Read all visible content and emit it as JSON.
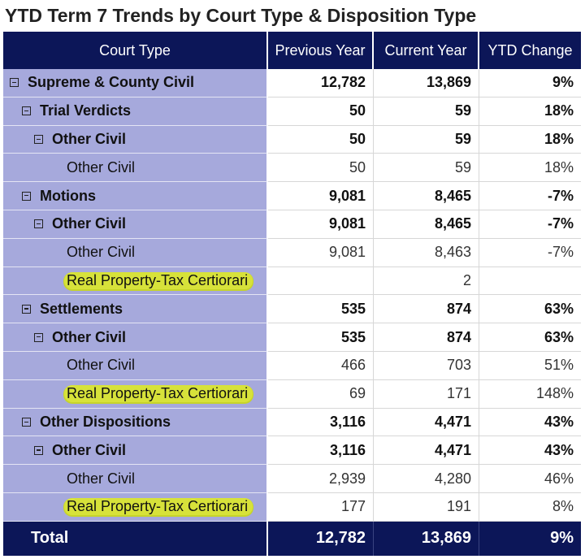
{
  "title": "YTD Term 7 Trends by Court Type & Disposition Type",
  "chart_data": {
    "type": "table",
    "columns": [
      "Court Type",
      "Previous Year",
      "Current Year",
      "YTD Change"
    ],
    "rows": [
      {
        "label": "Supreme & County Civil",
        "level": 0,
        "expandable": true,
        "bold": true,
        "highlight": false,
        "previous_year": "12,782",
        "current_year": "13,869",
        "ytd_change": "9%"
      },
      {
        "label": "Trial Verdicts",
        "level": 1,
        "expandable": true,
        "bold": true,
        "highlight": false,
        "previous_year": "50",
        "current_year": "59",
        "ytd_change": "18%"
      },
      {
        "label": "Other Civil",
        "level": 2,
        "expandable": true,
        "bold": true,
        "highlight": false,
        "previous_year": "50",
        "current_year": "59",
        "ytd_change": "18%"
      },
      {
        "label": "Other Civil",
        "level": 3,
        "expandable": false,
        "bold": false,
        "highlight": false,
        "previous_year": "50",
        "current_year": "59",
        "ytd_change": "18%"
      },
      {
        "label": "Motions",
        "level": 1,
        "expandable": true,
        "bold": true,
        "highlight": false,
        "previous_year": "9,081",
        "current_year": "8,465",
        "ytd_change": "-7%"
      },
      {
        "label": "Other Civil",
        "level": 2,
        "expandable": true,
        "bold": true,
        "highlight": false,
        "previous_year": "9,081",
        "current_year": "8,465",
        "ytd_change": "-7%"
      },
      {
        "label": "Other Civil",
        "level": 3,
        "expandable": false,
        "bold": false,
        "highlight": false,
        "previous_year": "9,081",
        "current_year": "8,463",
        "ytd_change": "-7%"
      },
      {
        "label": "Real Property-Tax Certiorari",
        "level": 3,
        "expandable": false,
        "bold": false,
        "highlight": true,
        "previous_year": "",
        "current_year": "2",
        "ytd_change": ""
      },
      {
        "label": "Settlements",
        "level": 1,
        "expandable": true,
        "bold": true,
        "highlight": false,
        "previous_year": "535",
        "current_year": "874",
        "ytd_change": "63%"
      },
      {
        "label": "Other Civil",
        "level": 2,
        "expandable": true,
        "bold": true,
        "highlight": false,
        "previous_year": "535",
        "current_year": "874",
        "ytd_change": "63%"
      },
      {
        "label": "Other Civil",
        "level": 3,
        "expandable": false,
        "bold": false,
        "highlight": false,
        "previous_year": "466",
        "current_year": "703",
        "ytd_change": "51%"
      },
      {
        "label": "Real Property-Tax Certiorari",
        "level": 3,
        "expandable": false,
        "bold": false,
        "highlight": true,
        "previous_year": "69",
        "current_year": "171",
        "ytd_change": "148%"
      },
      {
        "label": "Other Dispositions",
        "level": 1,
        "expandable": true,
        "bold": true,
        "highlight": false,
        "previous_year": "3,116",
        "current_year": "4,471",
        "ytd_change": "43%"
      },
      {
        "label": "Other Civil",
        "level": 2,
        "expandable": true,
        "bold": true,
        "highlight": false,
        "previous_year": "3,116",
        "current_year": "4,471",
        "ytd_change": "43%"
      },
      {
        "label": "Other Civil",
        "level": 3,
        "expandable": false,
        "bold": false,
        "highlight": false,
        "previous_year": "2,939",
        "current_year": "4,280",
        "ytd_change": "46%"
      },
      {
        "label": "Real Property-Tax Certiorari",
        "level": 3,
        "expandable": false,
        "bold": false,
        "highlight": true,
        "previous_year": "177",
        "current_year": "191",
        "ytd_change": "8%"
      }
    ],
    "total": {
      "label": "Total",
      "previous_year": "12,782",
      "current_year": "13,869",
      "ytd_change": "9%"
    }
  },
  "colors": {
    "header_bg": "#0c1658",
    "row_label_bg": "#a6a9dc",
    "highlight": "#d7e23a"
  }
}
